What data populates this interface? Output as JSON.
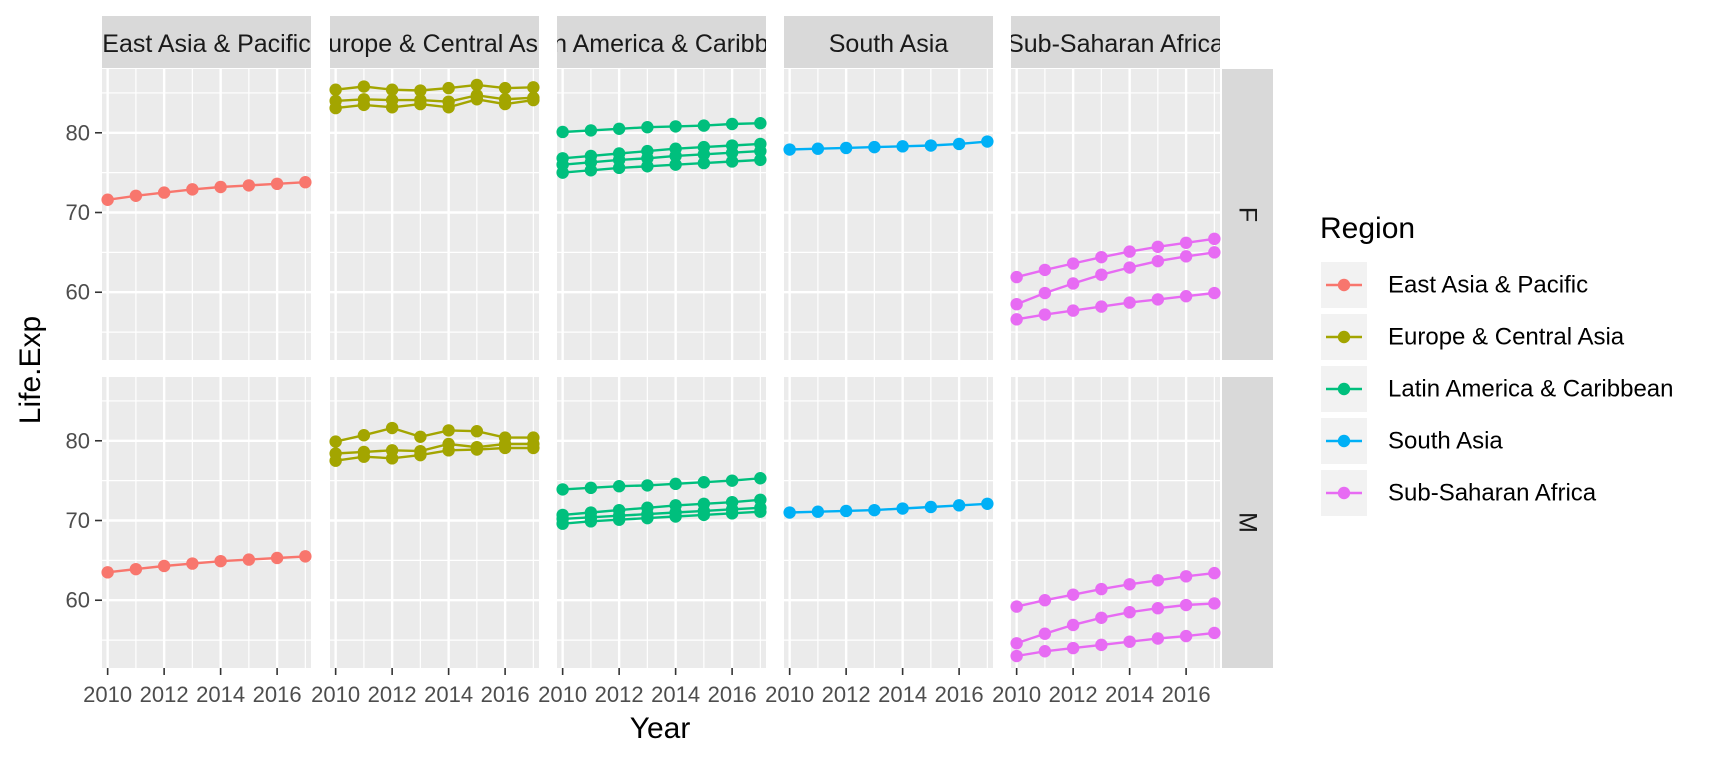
{
  "chart_data": {
    "type": "line",
    "xlabel": "Year",
    "ylabel": "Life.Exp",
    "xlim": [
      2009.8,
      2017.2
    ],
    "ylim": [
      51.5,
      88
    ],
    "x_ticks": [
      2010,
      2012,
      2014,
      2016
    ],
    "y_ticks": [
      60,
      70,
      80
    ],
    "grid": true,
    "legend": {
      "title": "Region",
      "placement": "right"
    },
    "facet_cols": [
      "East Asia & Pacific",
      "Europe & Central Asia",
      "Latin America & Caribbean",
      "South Asia",
      "Sub-Saharan Africa"
    ],
    "facet_rows": [
      "F",
      "M"
    ],
    "regions": [
      {
        "name": "East Asia & Pacific",
        "color": "#F8766D"
      },
      {
        "name": "Europe & Central Asia",
        "color": "#A3A500"
      },
      {
        "name": "Latin America & Caribbean",
        "color": "#00BF7D"
      },
      {
        "name": "South Asia",
        "color": "#00B0F6"
      },
      {
        "name": "Sub-Saharan Africa",
        "color": "#E76BF3"
      }
    ],
    "x": [
      2010,
      2011,
      2012,
      2013,
      2014,
      2015,
      2016,
      2017
    ],
    "panels": [
      {
        "row": "F",
        "col": "East Asia & Pacific",
        "lines": [
          [
            71.6,
            72.1,
            72.5,
            72.9,
            73.2,
            73.4,
            73.6,
            73.8
          ]
        ]
      },
      {
        "row": "F",
        "col": "Europe & Central Asia",
        "lines": [
          [
            85.4,
            85.8,
            85.4,
            85.3,
            85.6,
            86.0,
            85.6,
            85.7
          ],
          [
            84.0,
            84.2,
            84.1,
            84.1,
            83.9,
            84.7,
            84.2,
            84.4
          ],
          [
            83.1,
            83.5,
            83.2,
            83.6,
            83.2,
            84.2,
            83.6,
            84.1
          ]
        ]
      },
      {
        "row": "F",
        "col": "Latin America & Caribbean",
        "lines": [
          [
            80.1,
            80.3,
            80.5,
            80.7,
            80.8,
            80.9,
            81.1,
            81.2
          ],
          [
            76.8,
            77.1,
            77.4,
            77.7,
            78.0,
            78.2,
            78.4,
            78.6
          ],
          [
            76.0,
            76.3,
            76.6,
            76.8,
            77.1,
            77.3,
            77.5,
            77.7
          ],
          [
            75.0,
            75.3,
            75.6,
            75.8,
            76.0,
            76.2,
            76.4,
            76.6
          ]
        ]
      },
      {
        "row": "F",
        "col": "South Asia",
        "lines": [
          [
            77.9,
            78.0,
            78.1,
            78.2,
            78.3,
            78.4,
            78.6,
            78.9
          ]
        ]
      },
      {
        "row": "F",
        "col": "Sub-Saharan Africa",
        "lines": [
          [
            61.9,
            62.8,
            63.6,
            64.4,
            65.1,
            65.7,
            66.2,
            66.7
          ],
          [
            58.5,
            59.9,
            61.1,
            62.2,
            63.1,
            63.9,
            64.5,
            65.0
          ],
          [
            56.6,
            57.2,
            57.7,
            58.2,
            58.7,
            59.1,
            59.5,
            59.9
          ]
        ]
      },
      {
        "row": "M",
        "col": "East Asia & Pacific",
        "lines": [
          [
            63.5,
            63.9,
            64.3,
            64.6,
            64.9,
            65.1,
            65.3,
            65.5
          ]
        ]
      },
      {
        "row": "M",
        "col": "Europe & Central Asia",
        "lines": [
          [
            79.9,
            80.7,
            81.6,
            80.5,
            81.3,
            81.2,
            80.4,
            80.4
          ],
          [
            78.4,
            78.6,
            78.8,
            78.7,
            79.6,
            79.2,
            79.6,
            79.6
          ],
          [
            77.5,
            78.0,
            77.8,
            78.2,
            78.8,
            78.9,
            79.1,
            79.1
          ]
        ]
      },
      {
        "row": "M",
        "col": "Latin America & Caribbean",
        "lines": [
          [
            73.9,
            74.1,
            74.3,
            74.4,
            74.6,
            74.8,
            75.0,
            75.3
          ],
          [
            70.7,
            71.0,
            71.3,
            71.6,
            71.9,
            72.1,
            72.3,
            72.6
          ],
          [
            70.2,
            70.4,
            70.6,
            70.8,
            71.0,
            71.2,
            71.4,
            71.6
          ],
          [
            69.6,
            69.9,
            70.1,
            70.3,
            70.5,
            70.7,
            70.9,
            71.1
          ]
        ]
      },
      {
        "row": "M",
        "col": "South Asia",
        "lines": [
          [
            71.0,
            71.1,
            71.2,
            71.3,
            71.5,
            71.7,
            71.9,
            72.1
          ]
        ]
      },
      {
        "row": "M",
        "col": "Sub-Saharan Africa",
        "lines": [
          [
            59.2,
            60.0,
            60.7,
            61.4,
            62.0,
            62.5,
            63.0,
            63.4
          ],
          [
            54.6,
            55.8,
            56.9,
            57.8,
            58.5,
            59.0,
            59.4,
            59.6
          ],
          [
            53.0,
            53.6,
            54.0,
            54.4,
            54.8,
            55.2,
            55.5,
            55.9
          ]
        ]
      }
    ]
  }
}
